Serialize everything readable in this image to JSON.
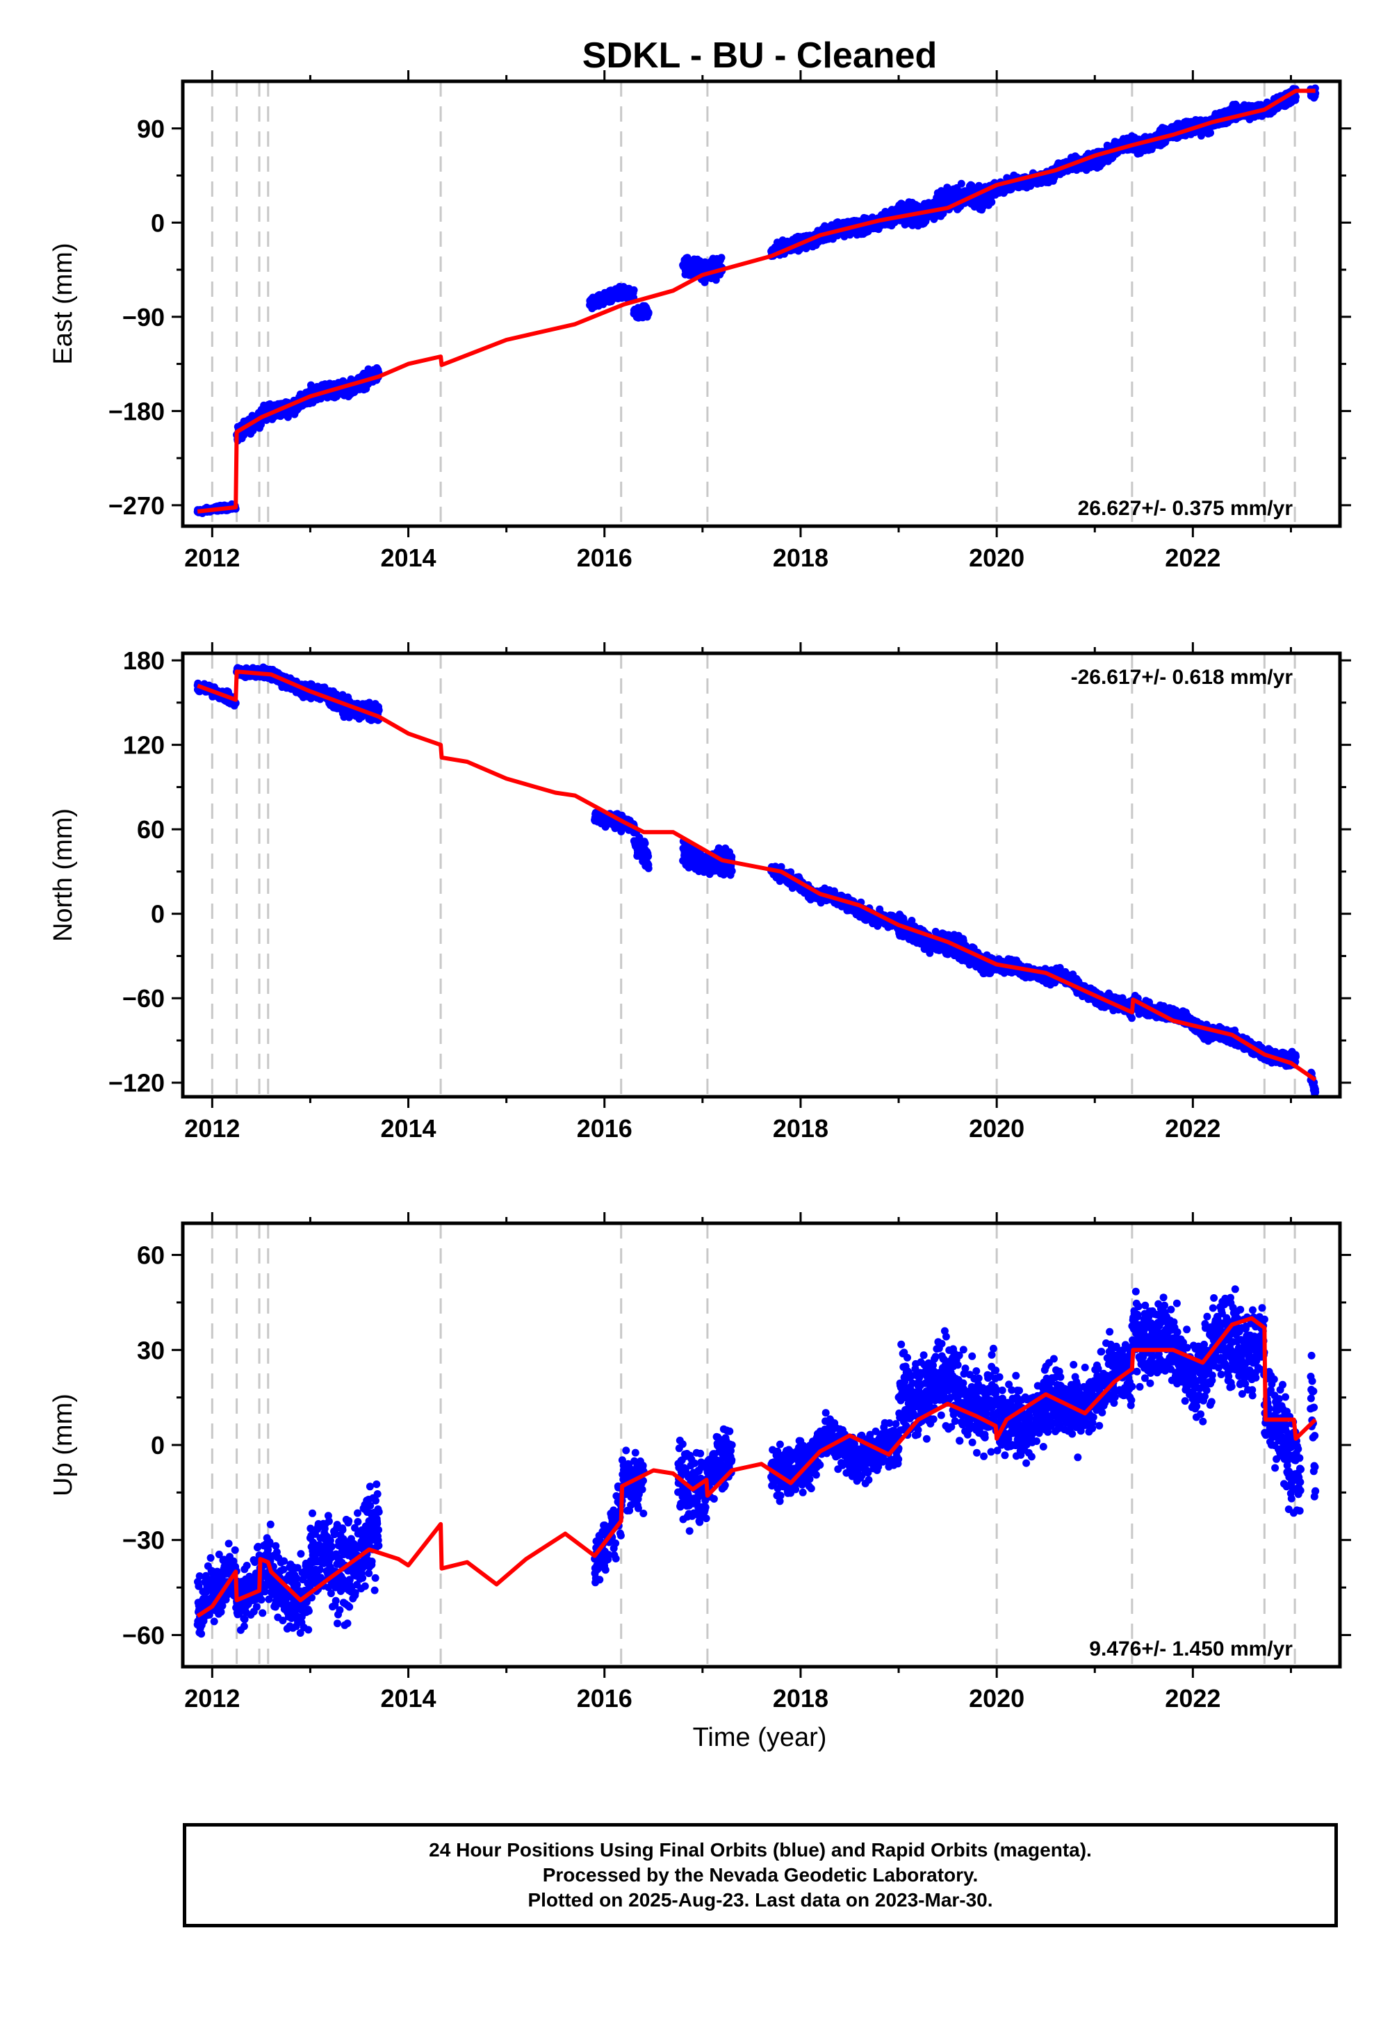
{
  "chart_data": {
    "type": "scatter",
    "title": "SDKL  - BU - Cleaned",
    "xlabel": "Time (year)",
    "xlim": [
      2011.7,
      2023.5
    ],
    "xticks": [
      2012,
      2014,
      2016,
      2018,
      2020,
      2022
    ],
    "xtick_labels": [
      "2012",
      "2014",
      "2016",
      "2018",
      "2020",
      "2022"
    ],
    "colors": {
      "points": "#0000ff",
      "model": "#ff0000",
      "steps": "#c8c8c8"
    },
    "step_lines": [
      2012.0,
      2012.25,
      2012.48,
      2012.57,
      2014.33,
      2016.17,
      2017.05,
      2020.0,
      2021.38,
      2022.73,
      2023.04
    ],
    "panels": [
      {
        "name": "east",
        "ylabel": "East (mm)",
        "ylim": [
          -290,
          135
        ],
        "yticks": [
          90,
          0,
          -90,
          -180,
          -270
        ],
        "ytick_labels": [
          "90",
          "0",
          "−90",
          "−180",
          "−270"
        ],
        "rate_label": "26.627+/- 0.375 mm/yr",
        "rate_position": "bottom-right",
        "model": [
          [
            2011.85,
            -276
          ],
          [
            2012.24,
            -272
          ],
          [
            2012.25,
            -200
          ],
          [
            2012.5,
            -186
          ],
          [
            2013.0,
            -166
          ],
          [
            2013.7,
            -147
          ],
          [
            2014.0,
            -135
          ],
          [
            2014.33,
            -128
          ],
          [
            2014.34,
            -136
          ],
          [
            2015.0,
            -112
          ],
          [
            2015.7,
            -97
          ],
          [
            2016.2,
            -78
          ],
          [
            2016.7,
            -65
          ],
          [
            2017.0,
            -50
          ],
          [
            2017.7,
            -32
          ],
          [
            2018.2,
            -12
          ],
          [
            2018.8,
            2
          ],
          [
            2019.5,
            14
          ],
          [
            2020.0,
            36
          ],
          [
            2020.6,
            50
          ],
          [
            2021.0,
            64
          ],
          [
            2021.38,
            74
          ],
          [
            2021.8,
            84
          ],
          [
            2022.2,
            96
          ],
          [
            2022.73,
            108
          ],
          [
            2023.05,
            126
          ],
          [
            2023.25,
            126
          ]
        ],
        "segments": [
          [
            2011.85,
            2012.24,
            -276,
            -272,
            2
          ],
          [
            2012.25,
            2012.5,
            -200,
            -186,
            6
          ],
          [
            2012.5,
            2013.0,
            -186,
            -166,
            6
          ],
          [
            2013.0,
            2013.7,
            -166,
            -147,
            6
          ],
          [
            2015.85,
            2016.3,
            -75,
            -68,
            5
          ],
          [
            2016.3,
            2016.45,
            -86,
            -82,
            5
          ],
          [
            2016.8,
            2017.2,
            -40,
            -45,
            8
          ],
          [
            2017.7,
            2018.2,
            -30,
            -12,
            5
          ],
          [
            2018.2,
            2019.0,
            -12,
            6,
            6
          ],
          [
            2019.0,
            2019.95,
            6,
            30,
            9
          ],
          [
            2019.95,
            2020.6,
            30,
            48,
            5
          ],
          [
            2020.6,
            2021.38,
            48,
            74,
            6
          ],
          [
            2021.38,
            2022.2,
            74,
            96,
            6
          ],
          [
            2022.2,
            2023.05,
            96,
            120,
            6
          ],
          [
            2023.2,
            2023.25,
            126,
            124,
            4
          ]
        ]
      },
      {
        "name": "north",
        "ylabel": "North (mm)",
        "ylim": [
          -130,
          185
        ],
        "yticks": [
          180,
          120,
          60,
          0,
          -60,
          -120
        ],
        "ytick_labels": [
          "180",
          "120",
          "60",
          "0",
          "−60",
          "−120"
        ],
        "rate_label": "-26.617+/- 0.618 mm/yr",
        "rate_position": "top-right",
        "model": [
          [
            2011.85,
            162
          ],
          [
            2012.24,
            152
          ],
          [
            2012.25,
            172
          ],
          [
            2012.6,
            170
          ],
          [
            2013.0,
            158
          ],
          [
            2013.7,
            140
          ],
          [
            2014.0,
            128
          ],
          [
            2014.33,
            120
          ],
          [
            2014.34,
            111
          ],
          [
            2014.6,
            108
          ],
          [
            2015.0,
            96
          ],
          [
            2015.5,
            86
          ],
          [
            2015.7,
            84
          ],
          [
            2016.2,
            65
          ],
          [
            2016.4,
            58
          ],
          [
            2016.7,
            58
          ],
          [
            2017.0,
            46
          ],
          [
            2017.2,
            38
          ],
          [
            2017.5,
            34
          ],
          [
            2017.8,
            30
          ],
          [
            2018.2,
            14
          ],
          [
            2018.6,
            6
          ],
          [
            2019.0,
            -8
          ],
          [
            2019.5,
            -20
          ],
          [
            2020.0,
            -36
          ],
          [
            2020.5,
            -42
          ],
          [
            2021.0,
            -58
          ],
          [
            2021.38,
            -70
          ],
          [
            2021.39,
            -61
          ],
          [
            2021.8,
            -76
          ],
          [
            2022.4,
            -86
          ],
          [
            2022.73,
            -100
          ],
          [
            2023.0,
            -106
          ],
          [
            2023.25,
            -118
          ]
        ],
        "segments": [
          [
            2011.85,
            2012.24,
            162,
            150,
            3
          ],
          [
            2012.25,
            2012.6,
            173,
            170,
            3
          ],
          [
            2012.6,
            2013.0,
            170,
            158,
            4
          ],
          [
            2013.0,
            2013.7,
            158,
            140,
            5
          ],
          [
            2015.9,
            2016.3,
            70,
            60,
            4
          ],
          [
            2016.3,
            2016.45,
            56,
            42,
            7
          ],
          [
            2016.8,
            2017.3,
            44,
            32,
            7
          ],
          [
            2017.7,
            2018.2,
            30,
            14,
            4
          ],
          [
            2018.2,
            2019.0,
            14,
            -8,
            4
          ],
          [
            2019.0,
            2019.95,
            -8,
            -36,
            6
          ],
          [
            2019.95,
            2020.6,
            -36,
            -44,
            4
          ],
          [
            2020.6,
            2021.38,
            -44,
            -70,
            4
          ],
          [
            2021.38,
            2022.2,
            -62,
            -84,
            4
          ],
          [
            2022.2,
            2023.05,
            -84,
            -106,
            4
          ],
          [
            2023.2,
            2023.25,
            -112,
            -126,
            4
          ]
        ]
      },
      {
        "name": "up",
        "ylabel": "Up (mm)",
        "ylim": [
          -70,
          70
        ],
        "yticks": [
          60,
          30,
          0,
          -30,
          -60
        ],
        "ytick_labels": [
          "60",
          "30",
          "0",
          "−30",
          "−60"
        ],
        "rate_label": "9.476+/- 1.450 mm/yr",
        "rate_position": "bottom-right",
        "model": [
          [
            2011.85,
            -54
          ],
          [
            2012.0,
            -51
          ],
          [
            2012.24,
            -40
          ],
          [
            2012.25,
            -49
          ],
          [
            2012.48,
            -46
          ],
          [
            2012.49,
            -36
          ],
          [
            2012.57,
            -37
          ],
          [
            2012.6,
            -40
          ],
          [
            2012.9,
            -49
          ],
          [
            2013.2,
            -42
          ],
          [
            2013.6,
            -33
          ],
          [
            2013.9,
            -36
          ],
          [
            2014.0,
            -38
          ],
          [
            2014.33,
            -25
          ],
          [
            2014.34,
            -39
          ],
          [
            2014.6,
            -37
          ],
          [
            2014.9,
            -44
          ],
          [
            2015.2,
            -36
          ],
          [
            2015.6,
            -28
          ],
          [
            2015.9,
            -35
          ],
          [
            2016.17,
            -24
          ],
          [
            2016.18,
            -13
          ],
          [
            2016.5,
            -8
          ],
          [
            2016.7,
            -9
          ],
          [
            2016.9,
            -14
          ],
          [
            2017.04,
            -11
          ],
          [
            2017.05,
            -16
          ],
          [
            2017.3,
            -8
          ],
          [
            2017.6,
            -6
          ],
          [
            2017.9,
            -12
          ],
          [
            2018.2,
            -2
          ],
          [
            2018.5,
            3
          ],
          [
            2018.9,
            -3
          ],
          [
            2019.2,
            8
          ],
          [
            2019.5,
            13
          ],
          [
            2019.8,
            9
          ],
          [
            2019.99,
            6
          ],
          [
            2020.0,
            2
          ],
          [
            2020.1,
            8
          ],
          [
            2020.5,
            16
          ],
          [
            2020.9,
            10
          ],
          [
            2021.2,
            20
          ],
          [
            2021.38,
            24
          ],
          [
            2021.39,
            30
          ],
          [
            2021.8,
            30
          ],
          [
            2022.1,
            26
          ],
          [
            2022.4,
            38
          ],
          [
            2022.6,
            40
          ],
          [
            2022.73,
            37
          ],
          [
            2022.74,
            8
          ],
          [
            2023.03,
            8
          ],
          [
            2023.04,
            5
          ],
          [
            2023.05,
            2
          ],
          [
            2023.25,
            8
          ]
        ],
        "segments": [
          [
            2011.85,
            2012.25,
            -52,
            -42,
            8
          ],
          [
            2012.25,
            2012.6,
            -46,
            -40,
            9
          ],
          [
            2012.6,
            2013.0,
            -44,
            -45,
            9
          ],
          [
            2013.0,
            2013.7,
            -40,
            -30,
            12
          ],
          [
            2015.9,
            2016.17,
            -36,
            -24,
            7
          ],
          [
            2016.17,
            2016.4,
            -14,
            -8,
            7
          ],
          [
            2016.75,
            2017.05,
            -12,
            -10,
            10
          ],
          [
            2017.05,
            2017.3,
            -10,
            -6,
            7
          ],
          [
            2017.7,
            2018.2,
            -12,
            0,
            7
          ],
          [
            2018.2,
            2019.0,
            0,
            -3,
            6
          ],
          [
            2019.0,
            2019.99,
            20,
            14,
            12
          ],
          [
            2019.99,
            2020.6,
            6,
            14,
            9
          ],
          [
            2020.6,
            2021.38,
            10,
            22,
            9
          ],
          [
            2021.38,
            2022.0,
            40,
            22,
            10
          ],
          [
            2022.0,
            2022.73,
            24,
            36,
            12
          ],
          [
            2022.73,
            2023.1,
            10,
            -8,
            12
          ],
          [
            2023.2,
            2023.25,
            18,
            -6,
            12
          ]
        ]
      }
    ],
    "footer_lines": [
      "24 Hour Positions Using Final Orbits (blue) and Rapid Orbits (magenta).",
      "Processed by the Nevada Geodetic Laboratory.",
      "Plotted on 2025-Aug-23. Last data on 2023-Mar-30."
    ]
  }
}
